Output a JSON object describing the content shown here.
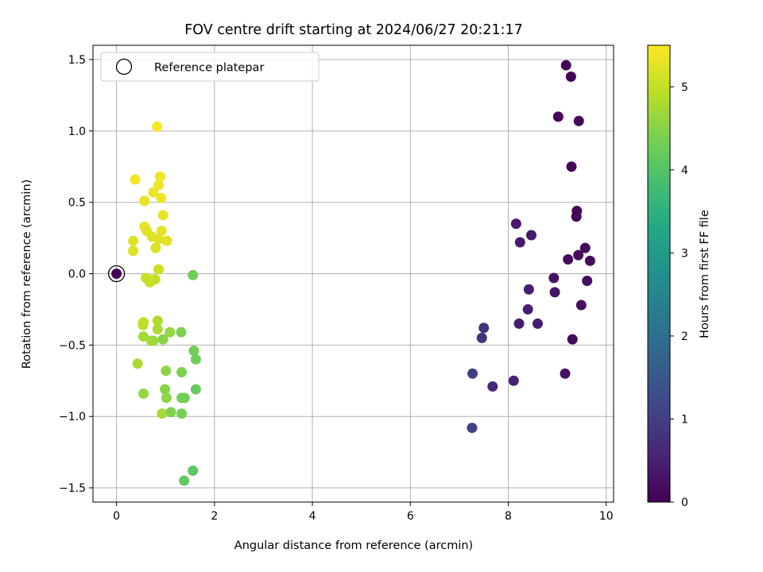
{
  "chart_data": {
    "type": "scatter",
    "title": "FOV centre drift starting at 2024/06/27 20:21:17",
    "xlabel": "Angular distance from reference (arcmin)",
    "ylabel": "Rotation from reference (arcmin)",
    "xlim": [
      -0.48,
      10.15
    ],
    "ylim": [
      -1.6,
      1.6
    ],
    "xticks": [
      0,
      2,
      4,
      6,
      8,
      10
    ],
    "yticks": [
      -1.5,
      -1.0,
      -0.5,
      0.0,
      0.5,
      1.0,
      1.5
    ],
    "grid": true,
    "legend": {
      "placement": "top-left",
      "entries": [
        "Reference platepar"
      ]
    },
    "colorbar": {
      "label": "Hours from first FF file",
      "colormap": "viridis",
      "range": [
        0,
        5.5
      ],
      "ticks": [
        0,
        1,
        2,
        3,
        4,
        5
      ]
    },
    "reference_point": {
      "x": 0,
      "y": 0
    },
    "points": [
      {
        "x": 9.18,
        "y": 1.46,
        "hours": 0.05
      },
      {
        "x": 9.28,
        "y": 1.38,
        "hours": 0.05
      },
      {
        "x": 9.02,
        "y": 1.1,
        "hours": 0.1
      },
      {
        "x": 9.44,
        "y": 1.07,
        "hours": 0.1
      },
      {
        "x": 9.29,
        "y": 0.75,
        "hours": 0.05
      },
      {
        "x": 9.4,
        "y": 0.44,
        "hours": 0.1
      },
      {
        "x": 9.39,
        "y": 0.4,
        "hours": 0.1
      },
      {
        "x": 9.57,
        "y": 0.18,
        "hours": 0.15
      },
      {
        "x": 9.43,
        "y": 0.13,
        "hours": 0.15
      },
      {
        "x": 9.22,
        "y": 0.1,
        "hours": 0.15
      },
      {
        "x": 9.67,
        "y": 0.09,
        "hours": 0.15
      },
      {
        "x": 8.93,
        "y": -0.03,
        "hours": 0.3
      },
      {
        "x": 9.61,
        "y": -0.05,
        "hours": 0.2
      },
      {
        "x": 8.95,
        "y": -0.13,
        "hours": 0.3
      },
      {
        "x": 9.49,
        "y": -0.22,
        "hours": 0.2
      },
      {
        "x": 9.31,
        "y": -0.46,
        "hours": 0.15
      },
      {
        "x": 9.16,
        "y": -0.7,
        "hours": 0.25
      },
      {
        "x": 8.16,
        "y": 0.35,
        "hours": 0.4
      },
      {
        "x": 8.24,
        "y": 0.22,
        "hours": 0.4
      },
      {
        "x": 8.47,
        "y": 0.27,
        "hours": 0.4
      },
      {
        "x": 8.42,
        "y": -0.11,
        "hours": 0.45
      },
      {
        "x": 8.4,
        "y": -0.25,
        "hours": 0.45
      },
      {
        "x": 8.22,
        "y": -0.35,
        "hours": 0.45
      },
      {
        "x": 8.6,
        "y": -0.35,
        "hours": 0.45
      },
      {
        "x": 8.11,
        "y": -0.75,
        "hours": 0.5
      },
      {
        "x": 7.68,
        "y": -0.79,
        "hours": 0.6
      },
      {
        "x": 7.5,
        "y": -0.38,
        "hours": 0.8
      },
      {
        "x": 7.46,
        "y": -0.45,
        "hours": 0.8
      },
      {
        "x": 7.27,
        "y": -0.7,
        "hours": 1.0
      },
      {
        "x": 7.26,
        "y": -1.08,
        "hours": 1.05
      },
      {
        "x": 0.83,
        "y": 1.03,
        "hours": 5.45
      },
      {
        "x": 0.38,
        "y": 0.66,
        "hours": 5.4
      },
      {
        "x": 0.89,
        "y": 0.68,
        "hours": 5.4
      },
      {
        "x": 0.86,
        "y": 0.62,
        "hours": 5.35
      },
      {
        "x": 0.75,
        "y": 0.57,
        "hours": 5.35
      },
      {
        "x": 0.91,
        "y": 0.53,
        "hours": 5.35
      },
      {
        "x": 0.57,
        "y": 0.51,
        "hours": 5.3
      },
      {
        "x": 0.95,
        "y": 0.41,
        "hours": 5.3
      },
      {
        "x": 0.57,
        "y": 0.33,
        "hours": 5.3
      },
      {
        "x": 0.62,
        "y": 0.3,
        "hours": 5.25
      },
      {
        "x": 0.92,
        "y": 0.3,
        "hours": 5.3
      },
      {
        "x": 0.72,
        "y": 0.26,
        "hours": 5.25
      },
      {
        "x": 0.86,
        "y": 0.24,
        "hours": 5.25
      },
      {
        "x": 0.34,
        "y": 0.23,
        "hours": 5.2
      },
      {
        "x": 1.03,
        "y": 0.23,
        "hours": 5.25
      },
      {
        "x": 0.8,
        "y": 0.18,
        "hours": 5.2
      },
      {
        "x": 0.34,
        "y": 0.16,
        "hours": 5.2
      },
      {
        "x": 0.86,
        "y": 0.03,
        "hours": 5.1
      },
      {
        "x": 0.6,
        "y": -0.03,
        "hours": 5.05
      },
      {
        "x": 0.66,
        "y": -0.04,
        "hours": 5.0
      },
      {
        "x": 0.79,
        "y": -0.04,
        "hours": 5.0
      },
      {
        "x": 0.68,
        "y": -0.06,
        "hours": 5.05
      },
      {
        "x": 1.56,
        "y": -0.01,
        "hours": 4.3
      },
      {
        "x": 0.55,
        "y": -0.34,
        "hours": 4.95
      },
      {
        "x": 0.54,
        "y": -0.36,
        "hours": 4.95
      },
      {
        "x": 0.84,
        "y": -0.33,
        "hours": 4.85
      },
      {
        "x": 0.84,
        "y": -0.39,
        "hours": 4.8
      },
      {
        "x": 0.55,
        "y": -0.44,
        "hours": 4.75
      },
      {
        "x": 0.71,
        "y": -0.47,
        "hours": 4.7
      },
      {
        "x": 0.75,
        "y": -0.47,
        "hours": 4.7
      },
      {
        "x": 0.95,
        "y": -0.46,
        "hours": 4.5
      },
      {
        "x": 1.09,
        "y": -0.41,
        "hours": 4.6
      },
      {
        "x": 1.32,
        "y": -0.41,
        "hours": 4.4
      },
      {
        "x": 1.58,
        "y": -0.54,
        "hours": 4.3
      },
      {
        "x": 1.62,
        "y": -0.6,
        "hours": 4.3
      },
      {
        "x": 0.43,
        "y": -0.63,
        "hours": 4.8
      },
      {
        "x": 1.01,
        "y": -0.68,
        "hours": 4.55
      },
      {
        "x": 1.33,
        "y": -0.69,
        "hours": 4.4
      },
      {
        "x": 0.55,
        "y": -0.84,
        "hours": 4.6
      },
      {
        "x": 0.99,
        "y": -0.81,
        "hours": 4.5
      },
      {
        "x": 1.02,
        "y": -0.87,
        "hours": 4.55
      },
      {
        "x": 1.33,
        "y": -0.87,
        "hours": 4.35
      },
      {
        "x": 1.39,
        "y": -0.87,
        "hours": 4.3
      },
      {
        "x": 1.62,
        "y": -0.81,
        "hours": 4.2
      },
      {
        "x": 0.93,
        "y": -0.98,
        "hours": 4.75
      },
      {
        "x": 1.11,
        "y": -0.97,
        "hours": 4.45
      },
      {
        "x": 1.33,
        "y": -0.98,
        "hours": 4.35
      },
      {
        "x": 1.56,
        "y": -1.38,
        "hours": 4.1
      },
      {
        "x": 1.38,
        "y": -1.45,
        "hours": 4.15
      }
    ]
  }
}
